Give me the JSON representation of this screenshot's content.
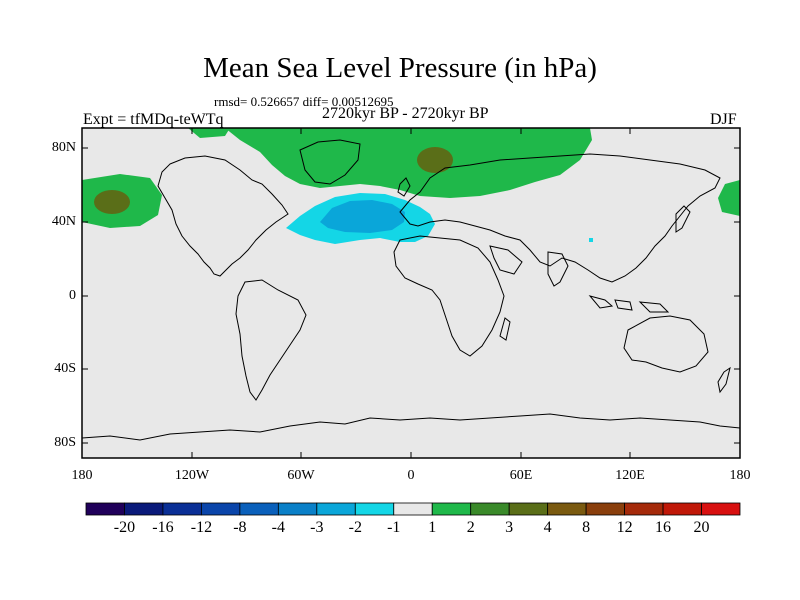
{
  "title": "Mean Sea Level Pressure (in hPa)",
  "stats": "rmsd= 0.526657 diff= 0.00512695",
  "period": "2720kyr BP - 2720kyr BP",
  "experiment": "Expt = tfMDq-teWTq",
  "season": "DJF",
  "y_axis_labels": [
    "80N",
    "40N",
    "0",
    "40S",
    "80S"
  ],
  "x_axis_labels": [
    "180",
    "120W",
    "60W",
    "0",
    "60E",
    "120E",
    "180"
  ],
  "colorbar": {
    "labels": [
      "-20",
      "-16",
      "-12",
      "-8",
      "-4",
      "-3",
      "-2",
      "-1",
      "1",
      "2",
      "3",
      "4",
      "8",
      "12",
      "16",
      "20"
    ],
    "colors": [
      "#20005a",
      "#0a1a7a",
      "#0a2f96",
      "#0a45aa",
      "#0a60bb",
      "#0a80c8",
      "#0aa6d9",
      "#14d6e6",
      "#e8e8e8",
      "#1fb84a",
      "#3a8a2a",
      "#5a6e18",
      "#7a5a10",
      "#8a3f0c",
      "#a52a0a",
      "#c01808",
      "#d81010"
    ]
  },
  "colors": {
    "land_sea_background": "#e8e8e8",
    "positive_anomaly": "#1fb84a",
    "strong_positive_anomaly": "#5a6e18",
    "negative_anomaly": "#14d6e6",
    "strong_negative_anomaly": "#0aa6d9"
  }
}
